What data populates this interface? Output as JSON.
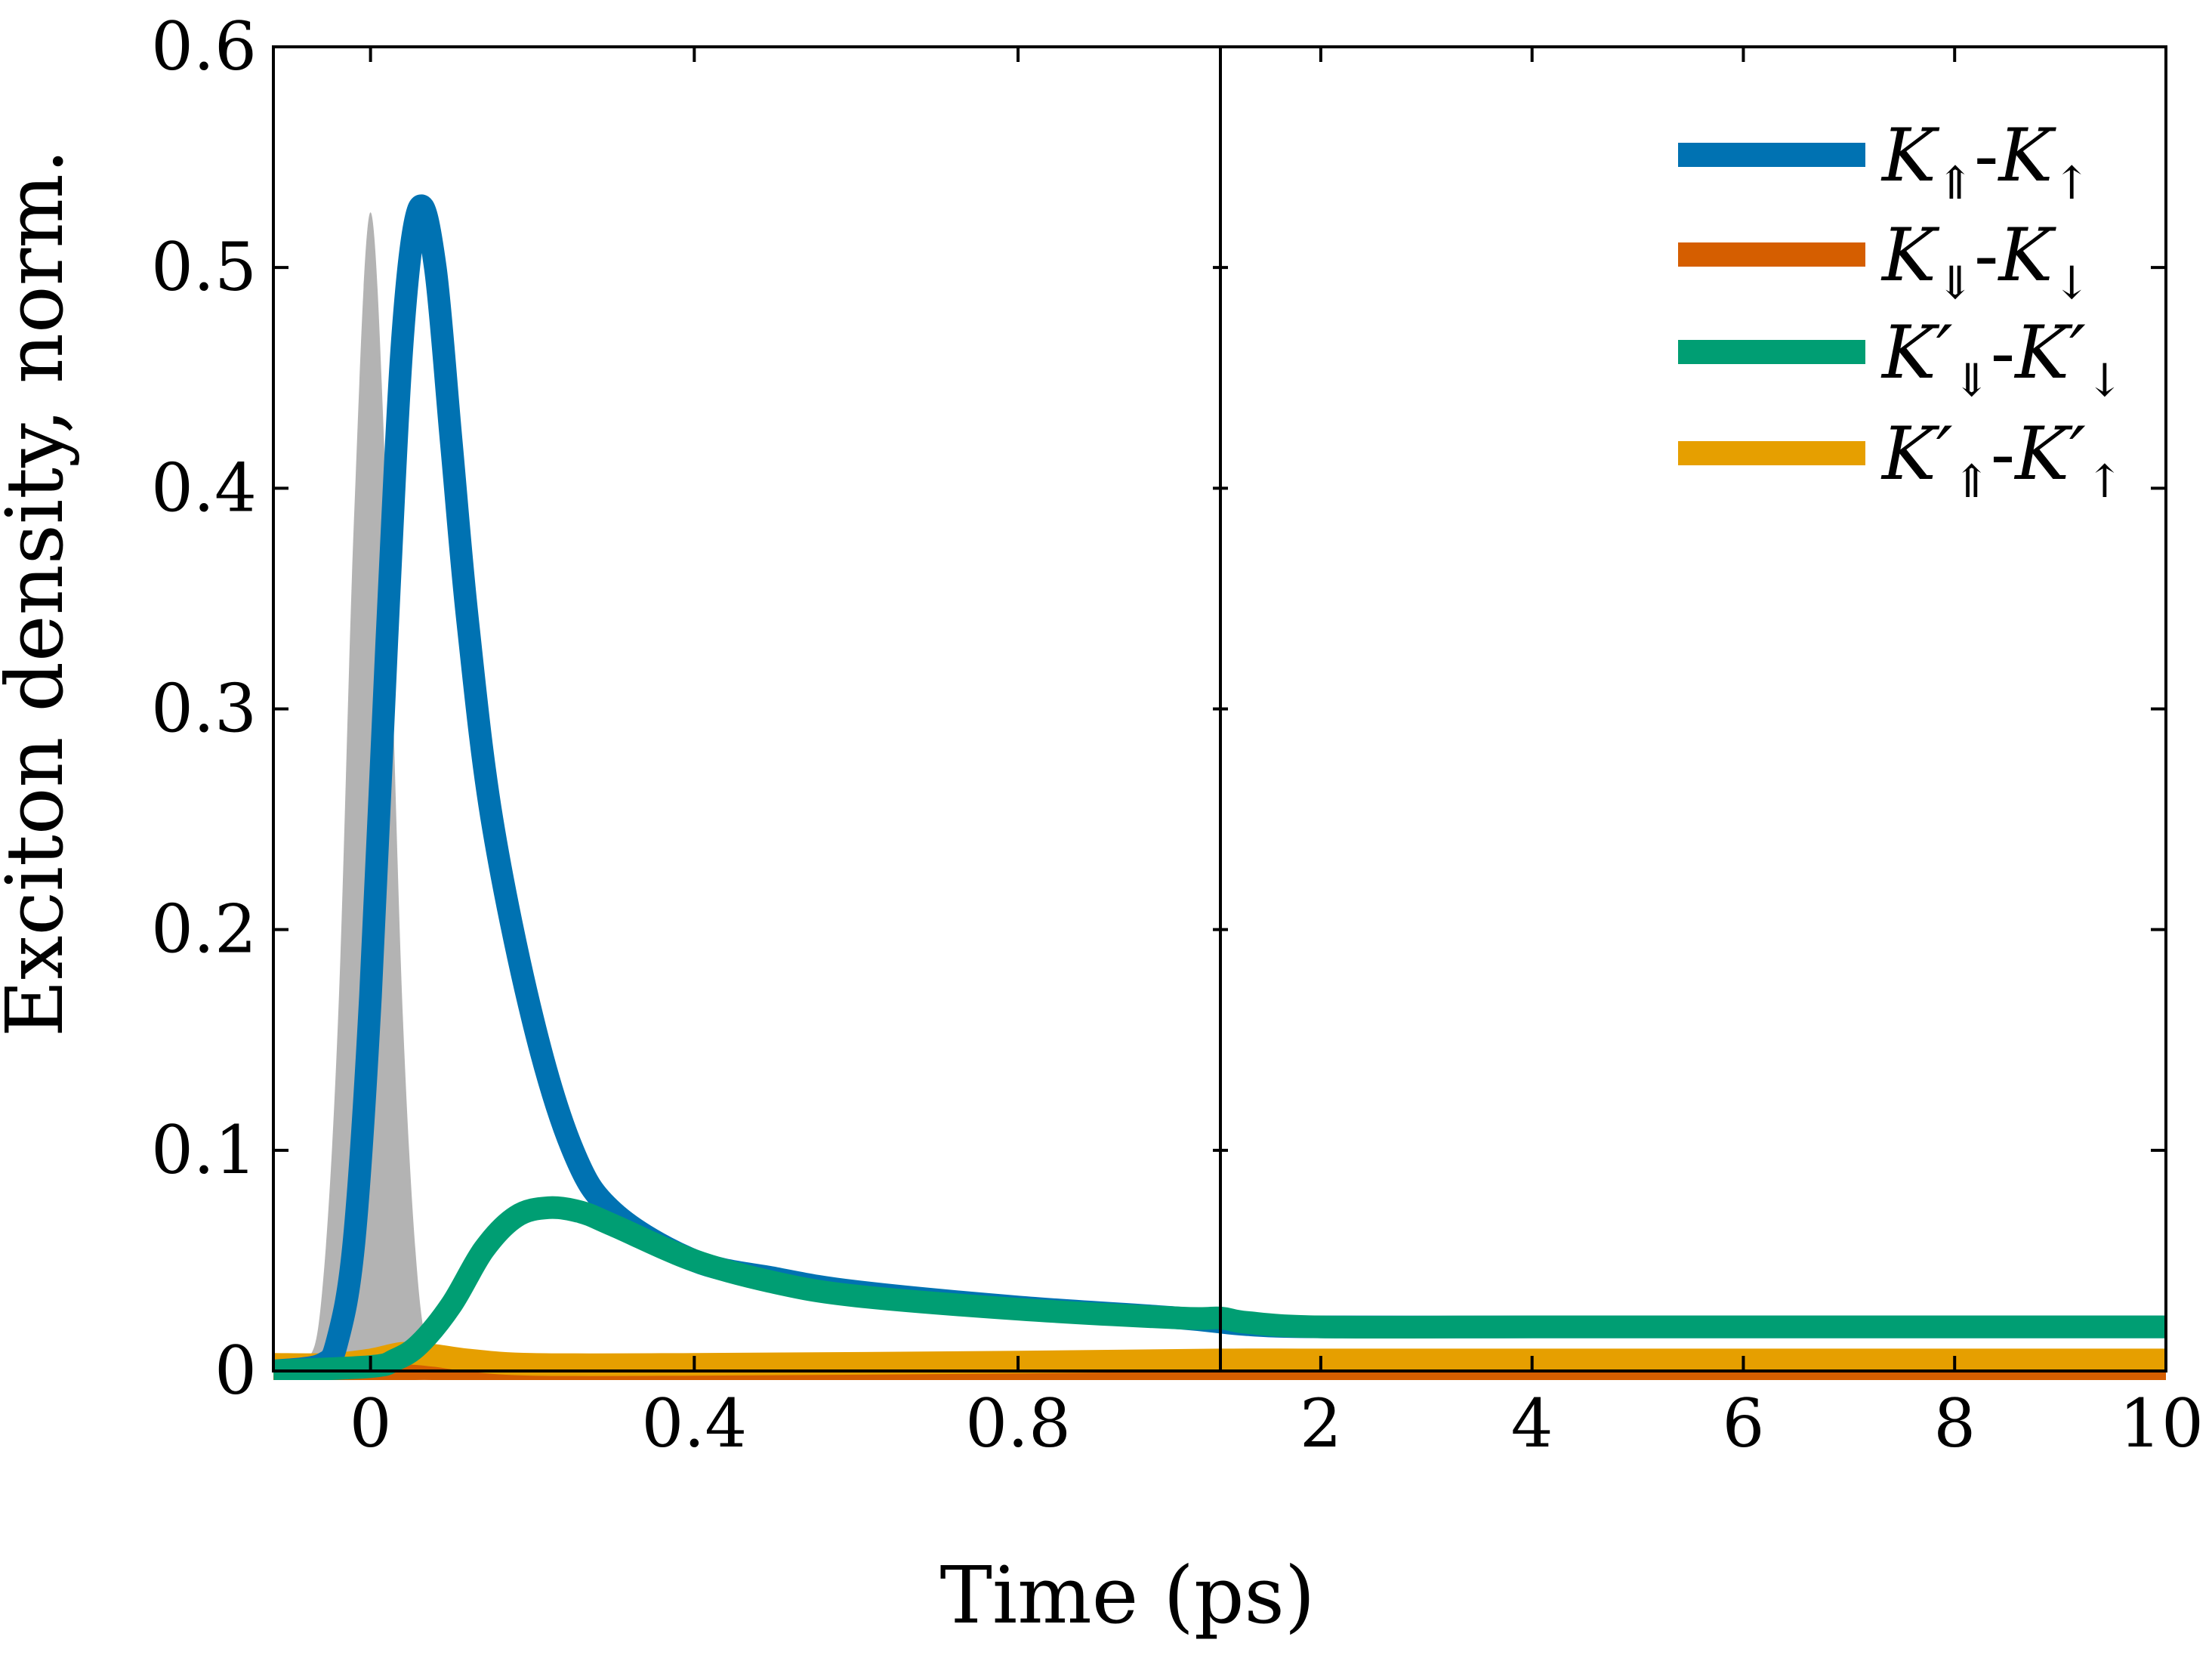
{
  "chart_data": {
    "type": "line",
    "xlabel": "Time (ps)",
    "ylabel": "Exciton density, norm.",
    "ylim": [
      0,
      0.6
    ],
    "yticks": [
      "0",
      "0.1",
      "0.2",
      "0.3",
      "0.4",
      "0.5",
      "0.6"
    ],
    "panels": [
      {
        "name": "early",
        "xlim": [
          -0.12,
          1.05
        ],
        "xticks": [
          "0",
          "0.4",
          "0.8"
        ]
      },
      {
        "name": "late",
        "xlim": [
          1.05,
          10
        ],
        "xticks": [
          "2",
          "4",
          "6",
          "8",
          "10"
        ]
      }
    ],
    "pulse": {
      "name": "excitation pulse",
      "color": "#b3b3b3",
      "x": [
        -0.12,
        -0.08,
        -0.06,
        -0.04,
        -0.02,
        0.0,
        0.02,
        0.04,
        0.06,
        0.08,
        0.1,
        0.12
      ],
      "values": [
        0.0,
        0.004,
        0.035,
        0.16,
        0.39,
        0.525,
        0.39,
        0.16,
        0.035,
        0.004,
        0.0,
        0.0
      ]
    },
    "series": [
      {
        "name": "K_⇑-K_↑",
        "base1": "K",
        "sub1": "⇑",
        "prime1": "",
        "base2": "K",
        "sub2": "↑",
        "prime2": "",
        "color": "#0072b2",
        "x": [
          -0.12,
          -0.06,
          -0.04,
          -0.02,
          0.0,
          0.02,
          0.04,
          0.06,
          0.08,
          0.1,
          0.12,
          0.15,
          0.2,
          0.25,
          0.3,
          0.4,
          0.5,
          0.6,
          0.8,
          1.0,
          1.3,
          2.0,
          4.0,
          6.0,
          8.0,
          10.0
        ],
        "values": [
          0.0,
          0.003,
          0.015,
          0.06,
          0.17,
          0.33,
          0.47,
          0.527,
          0.5,
          0.42,
          0.34,
          0.25,
          0.16,
          0.1,
          0.072,
          0.05,
          0.042,
          0.036,
          0.029,
          0.024,
          0.021,
          0.02,
          0.02,
          0.02,
          0.02,
          0.02
        ]
      },
      {
        "name": "K_⇓-K_↓",
        "base1": "K",
        "sub1": "⇓",
        "prime1": "",
        "base2": "K",
        "sub2": "↓",
        "prime2": "",
        "color": "#d55e00",
        "x": [
          -0.12,
          0.0,
          0.05,
          0.1,
          0.2,
          0.4,
          0.8,
          1.05,
          2.0,
          4.0,
          6.0,
          8.0,
          10.0
        ],
        "values": [
          0.0,
          0.0,
          0.001,
          0.001,
          0.001,
          0.001,
          0.001,
          0.001,
          0.001,
          0.001,
          0.001,
          0.001,
          0.001
        ]
      },
      {
        "name": "K′_⇓-K′_↓",
        "base1": "K",
        "sub1": "⇓",
        "prime1": "′",
        "base2": "K",
        "sub2": "↓",
        "prime2": "′",
        "color": "#009e73",
        "x": [
          -0.12,
          0.0,
          0.03,
          0.06,
          0.1,
          0.14,
          0.18,
          0.22,
          0.26,
          0.3,
          0.4,
          0.5,
          0.6,
          0.8,
          1.0,
          1.05,
          1.3,
          2.0,
          4.0,
          6.0,
          8.0,
          10.0
        ],
        "values": [
          0.0,
          0.002,
          0.005,
          0.012,
          0.03,
          0.055,
          0.07,
          0.074,
          0.072,
          0.066,
          0.05,
          0.04,
          0.034,
          0.028,
          0.024,
          0.024,
          0.022,
          0.02,
          0.02,
          0.02,
          0.02,
          0.02
        ]
      },
      {
        "name": "K′_⇑-K′_↑",
        "base1": "K",
        "sub1": "⇑",
        "prime1": "′",
        "base2": "K",
        "sub2": "↑",
        "prime2": "′",
        "color": "#e69f00",
        "x": [
          -0.12,
          -0.05,
          0.0,
          0.04,
          0.08,
          0.12,
          0.2,
          0.4,
          0.8,
          1.05,
          2.0,
          4.0,
          6.0,
          8.0,
          10.0
        ],
        "values": [
          0.003,
          0.003,
          0.005,
          0.008,
          0.007,
          0.005,
          0.003,
          0.003,
          0.004,
          0.005,
          0.005,
          0.005,
          0.005,
          0.005,
          0.005
        ]
      }
    ]
  }
}
